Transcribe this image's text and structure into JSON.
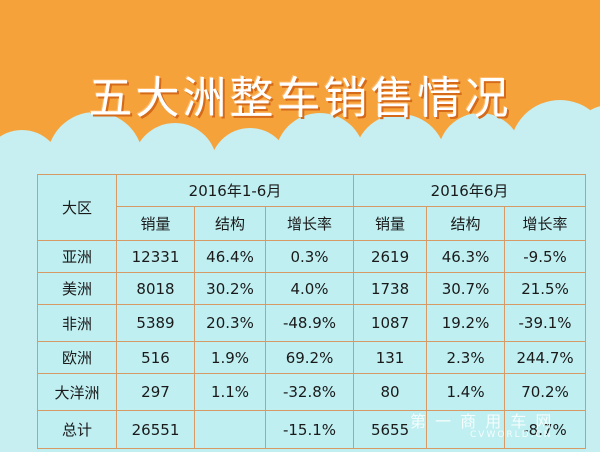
{
  "title": "五大洲整车销售情况",
  "table": {
    "header": {
      "region": "大区",
      "period1": "2016年1-6月",
      "period2": "2016年6月",
      "cols": [
        "销量",
        "结构",
        "增长率"
      ]
    },
    "rows": [
      {
        "region": "亚洲",
        "h1_sales": "12331",
        "h1_share": "46.4%",
        "h1_growth": "0.3%",
        "jun_sales": "2619",
        "jun_share": "46.3%",
        "jun_growth": "-9.5%"
      },
      {
        "region": "美洲",
        "h1_sales": "8018",
        "h1_share": "30.2%",
        "h1_growth": "4.0%",
        "jun_sales": "1738",
        "jun_share": "30.7%",
        "jun_growth": "21.5%"
      },
      {
        "region": "非洲",
        "h1_sales": "5389",
        "h1_share": "20.3%",
        "h1_growth": "-48.9%",
        "jun_sales": "1087",
        "jun_share": "19.2%",
        "jun_growth": "-39.1%"
      },
      {
        "region": "欧洲",
        "h1_sales": "516",
        "h1_share": "1.9%",
        "h1_growth": "69.2%",
        "jun_sales": "131",
        "jun_share": "2.3%",
        "jun_growth": "244.7%"
      },
      {
        "region": "大洋洲",
        "h1_sales": "297",
        "h1_share": "1.1%",
        "h1_growth": "-32.8%",
        "jun_sales": "80",
        "jun_share": "1.4%",
        "jun_growth": "70.2%"
      },
      {
        "region": "总计",
        "h1_sales": "26551",
        "h1_share": "",
        "h1_growth": "-15.1%",
        "jun_sales": "5655",
        "jun_share": "",
        "jun_growth": "-8.7%"
      }
    ]
  },
  "watermark": {
    "cn": "第 一 商 用 车 网",
    "url": "CVWORLD.CN"
  },
  "colors": {
    "background": "#f6a23a",
    "cloud": "#c7eef0",
    "border": "#d59a66"
  }
}
